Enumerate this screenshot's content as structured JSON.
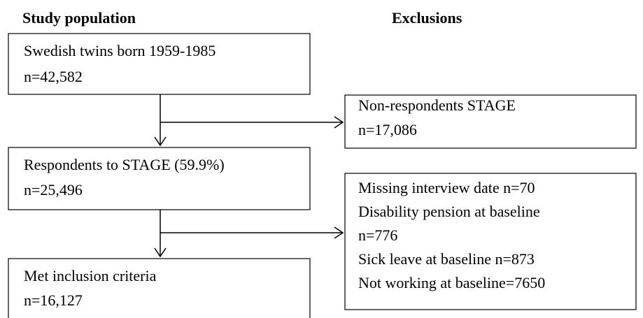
{
  "headers": {
    "left": "Study population",
    "right": "Exclusions"
  },
  "nodes": [
    {
      "lines": [
        "Swedish twins born 1959-1985",
        "n=42,582"
      ]
    },
    {
      "lines": [
        "Non-respondents STAGE",
        "n=17,086"
      ]
    },
    {
      "lines": [
        "Respondents to STAGE (59.9%)",
        "n=25,496"
      ]
    },
    {
      "lines": [
        "Missing interview date n=70",
        "Disability pension at baseline",
        "n=776",
        "Sick leave at baseline n=873",
        "Not working at baseline=7650"
      ]
    },
    {
      "lines": [
        "Met inclusion criteria",
        "n=16,127"
      ]
    }
  ]
}
